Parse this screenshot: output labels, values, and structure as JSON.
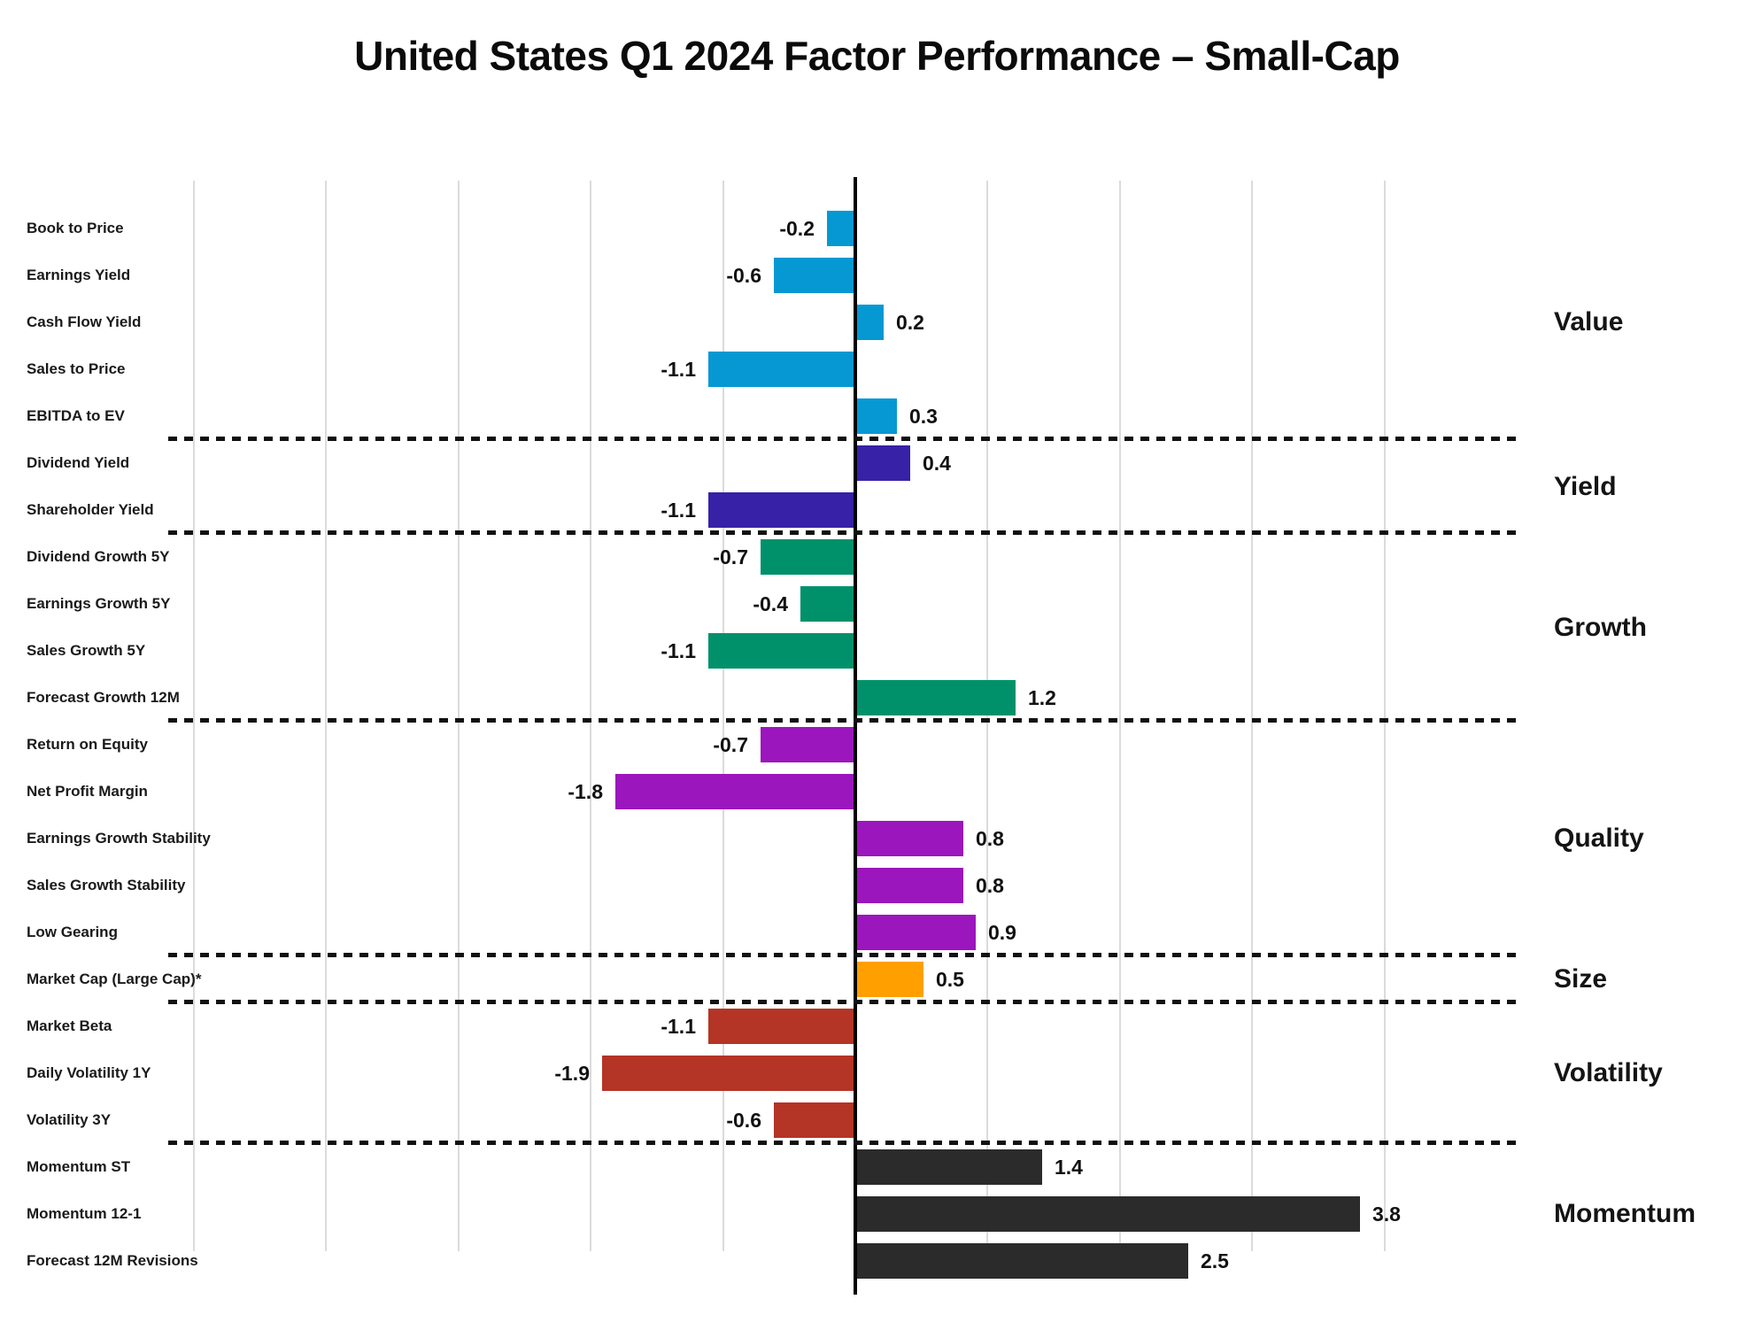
{
  "title": "United States Q1 2024 Factor Performance – Small-Cap",
  "chart_data": {
    "type": "bar",
    "orientation": "horizontal",
    "title": "United States Q1 2024 Factor Performance – Small-Cap",
    "value_axis": {
      "min": -5,
      "max": 5,
      "gridline_step": 1,
      "grid": true,
      "tick_labels_visible": false
    },
    "legend_position": "right-group-labels",
    "groups": [
      {
        "label": "Value",
        "color": "#0598D3",
        "factors": [
          {
            "label": "Book to Price",
            "value": -0.2
          },
          {
            "label": "Earnings Yield",
            "value": -0.6
          },
          {
            "label": "Cash Flow Yield",
            "value": 0.2
          },
          {
            "label": "Sales to Price",
            "value": -1.1
          },
          {
            "label": "EBITDA to EV",
            "value": 0.3
          }
        ]
      },
      {
        "label": "Yield",
        "color": "#3721A6",
        "factors": [
          {
            "label": "Dividend Yield",
            "value": 0.4
          },
          {
            "label": "Shareholder Yield",
            "value": -1.1
          }
        ]
      },
      {
        "label": "Growth",
        "color": "#00916A",
        "factors": [
          {
            "label": "Dividend Growth 5Y",
            "value": -0.7
          },
          {
            "label": "Earnings Growth 5Y",
            "value": -0.4
          },
          {
            "label": "Sales Growth 5Y",
            "value": -1.1
          },
          {
            "label": "Forecast Growth 12M",
            "value": 1.2
          }
        ]
      },
      {
        "label": "Quality",
        "color": "#9B16BC",
        "factors": [
          {
            "label": "Return on Equity",
            "value": -0.7
          },
          {
            "label": "Net Profit Margin",
            "value": -1.8
          },
          {
            "label": "Earnings Growth Stability",
            "value": 0.8
          },
          {
            "label": "Sales Growth Stability",
            "value": 0.8
          },
          {
            "label": "Low Gearing",
            "value": 0.9
          }
        ]
      },
      {
        "label": "Size",
        "color": "#FFA000",
        "factors": [
          {
            "label": "Market Cap (Large Cap)*",
            "value": 0.5
          }
        ]
      },
      {
        "label": "Volatility",
        "color": "#B43425",
        "factors": [
          {
            "label": "Market Beta",
            "value": -1.1
          },
          {
            "label": "Daily Volatility 1Y",
            "value": -1.9
          },
          {
            "label": "Volatility 3Y",
            "value": -0.6
          }
        ]
      },
      {
        "label": "Momentum",
        "color": "#2B2B2B",
        "factors": [
          {
            "label": "Momentum ST",
            "value": 1.4
          },
          {
            "label": "Momentum 12-1",
            "value": 3.8
          },
          {
            "label": "Forecast 12M Revisions",
            "value": 2.5
          }
        ]
      }
    ]
  },
  "style": {
    "grid_color": "#DBDBDB",
    "axis_color": "#000000",
    "separator_color": "#111111",
    "text_color": "#1A1A1A",
    "background": "#FFFFFF"
  }
}
